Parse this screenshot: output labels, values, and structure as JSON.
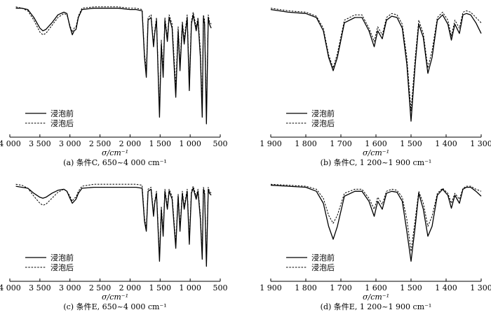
{
  "chart_data": [
    {
      "type": "line",
      "caption": "(a) 条件C, 650~4 000 cm⁻¹",
      "xlabel": "σ/cm⁻¹",
      "xlim": [
        4000,
        500
      ],
      "xticks": [
        4000,
        3500,
        3000,
        2500,
        2000,
        1500,
        1000,
        500
      ],
      "xtick_labels": [
        "4 000",
        "3 500",
        "3 000",
        "2 500",
        "2 000",
        "1 500",
        "1 000",
        "500"
      ],
      "ylim": [
        0,
        1
      ],
      "legend": [
        "浸泡前",
        "浸泡后"
      ],
      "series": [
        {
          "name": "浸泡前",
          "style": "solid",
          "x": [
            3900,
            3800,
            3700,
            3600,
            3500,
            3450,
            3400,
            3300,
            3200,
            3100,
            3050,
            3000,
            2960,
            2930,
            2900,
            2860,
            2800,
            2600,
            2400,
            2200,
            2000,
            1900,
            1800,
            1760,
            1730,
            1700,
            1650,
            1610,
            1590,
            1560,
            1510,
            1480,
            1450,
            1420,
            1380,
            1350,
            1300,
            1240,
            1200,
            1170,
            1130,
            1100,
            1050,
            1015,
            980,
            950,
            900,
            870,
            830,
            800,
            780,
            760,
            730,
            700,
            680,
            650
          ],
          "y": [
            0.97,
            0.97,
            0.96,
            0.9,
            0.82,
            0.8,
            0.81,
            0.86,
            0.92,
            0.94,
            0.93,
            0.83,
            0.77,
            0.8,
            0.81,
            0.9,
            0.96,
            0.97,
            0.97,
            0.97,
            0.96,
            0.96,
            0.95,
            0.6,
            0.45,
            0.88,
            0.9,
            0.68,
            0.78,
            0.88,
            0.15,
            0.7,
            0.45,
            0.88,
            0.72,
            0.9,
            0.82,
            0.3,
            0.8,
            0.5,
            0.85,
            0.7,
            0.9,
            0.35,
            0.85,
            0.92,
            0.8,
            0.88,
            0.6,
            0.15,
            0.9,
            0.85,
            0.1,
            0.9,
            0.85,
            0.82
          ]
        },
        {
          "name": "浸泡后",
          "style": "dashed",
          "x": [
            3900,
            3800,
            3700,
            3600,
            3500,
            3450,
            3400,
            3300,
            3200,
            3100,
            3050,
            3000,
            2960,
            2930,
            2900,
            2860,
            2800,
            2600,
            2400,
            2200,
            2000,
            1900,
            1800,
            1760,
            1730,
            1700,
            1650,
            1610,
            1590,
            1560,
            1510,
            1480,
            1450,
            1420,
            1380,
            1350,
            1300,
            1240,
            1200,
            1170,
            1130,
            1100,
            1050,
            1015,
            980,
            950,
            900,
            870,
            830,
            800,
            780,
            760,
            730,
            700,
            680,
            650
          ],
          "y": [
            0.98,
            0.97,
            0.95,
            0.88,
            0.79,
            0.77,
            0.78,
            0.84,
            0.9,
            0.93,
            0.92,
            0.84,
            0.79,
            0.82,
            0.83,
            0.91,
            0.97,
            0.98,
            0.98,
            0.98,
            0.97,
            0.97,
            0.96,
            0.63,
            0.5,
            0.9,
            0.92,
            0.7,
            0.8,
            0.9,
            0.2,
            0.73,
            0.5,
            0.9,
            0.75,
            0.92,
            0.85,
            0.38,
            0.83,
            0.55,
            0.87,
            0.74,
            0.92,
            0.42,
            0.87,
            0.94,
            0.83,
            0.9,
            0.65,
            0.22,
            0.92,
            0.88,
            0.18,
            0.92,
            0.87,
            0.85
          ]
        }
      ]
    },
    {
      "type": "line",
      "caption": "(b) 条件C, 1 200~1 900 cm⁻¹",
      "xlabel": "σ/cm⁻¹",
      "xlim": [
        1900,
        1300
      ],
      "xticks": [
        1900,
        1800,
        1700,
        1600,
        1500,
        1400,
        1300
      ],
      "xtick_labels": [
        "1 900",
        "1 800",
        "1 700",
        "1 600",
        "1 500",
        "1 400",
        "1 300"
      ],
      "ylim": [
        0,
        1
      ],
      "legend": [
        "浸泡前",
        "浸泡后"
      ],
      "series": [
        {
          "name": "浸泡前",
          "style": "solid",
          "x": [
            1900,
            1850,
            1800,
            1770,
            1750,
            1735,
            1722,
            1710,
            1690,
            1660,
            1640,
            1620,
            1605,
            1595,
            1582,
            1570,
            1555,
            1540,
            1525,
            1512,
            1500,
            1488,
            1478,
            1465,
            1452,
            1440,
            1425,
            1410,
            1395,
            1385,
            1375,
            1362,
            1352,
            1342,
            1330,
            1315,
            1300
          ],
          "y": [
            0.96,
            0.94,
            0.93,
            0.9,
            0.8,
            0.6,
            0.5,
            0.6,
            0.86,
            0.9,
            0.9,
            0.8,
            0.68,
            0.8,
            0.74,
            0.88,
            0.91,
            0.9,
            0.82,
            0.55,
            0.12,
            0.55,
            0.85,
            0.75,
            0.48,
            0.6,
            0.88,
            0.92,
            0.85,
            0.73,
            0.85,
            0.78,
            0.92,
            0.93,
            0.92,
            0.86,
            0.78
          ]
        },
        {
          "name": "浸泡后",
          "style": "dashed",
          "x": [
            1900,
            1850,
            1800,
            1770,
            1750,
            1735,
            1722,
            1710,
            1690,
            1660,
            1640,
            1620,
            1605,
            1595,
            1582,
            1570,
            1555,
            1540,
            1525,
            1512,
            1500,
            1488,
            1478,
            1465,
            1452,
            1440,
            1425,
            1410,
            1395,
            1385,
            1375,
            1362,
            1352,
            1342,
            1330,
            1315,
            1300
          ],
          "y": [
            0.97,
            0.95,
            0.94,
            0.91,
            0.82,
            0.62,
            0.52,
            0.63,
            0.88,
            0.92,
            0.92,
            0.82,
            0.72,
            0.83,
            0.77,
            0.9,
            0.93,
            0.92,
            0.85,
            0.6,
            0.2,
            0.6,
            0.88,
            0.78,
            0.52,
            0.65,
            0.9,
            0.94,
            0.88,
            0.76,
            0.88,
            0.82,
            0.94,
            0.95,
            0.94,
            0.9,
            0.86
          ]
        }
      ]
    },
    {
      "type": "line",
      "caption": "(c) 条件E, 650~4 000 cm⁻¹",
      "xlabel": "σ/cm⁻¹",
      "xlim": [
        4000,
        500
      ],
      "xticks": [
        4000,
        3500,
        3000,
        2500,
        2000,
        1500,
        1000,
        500
      ],
      "xtick_labels": [
        "4 000",
        "3 500",
        "3 000",
        "2 500",
        "2 000",
        "1 500",
        "1 000",
        "500"
      ],
      "ylim": [
        0,
        1
      ],
      "legend": [
        "浸泡前",
        "浸泡后"
      ],
      "series": [
        {
          "name": "浸泡前",
          "style": "solid",
          "x": [
            3900,
            3800,
            3700,
            3600,
            3500,
            3450,
            3400,
            3300,
            3200,
            3100,
            3050,
            3000,
            2960,
            2930,
            2900,
            2860,
            2800,
            2600,
            2400,
            2200,
            2000,
            1900,
            1800,
            1760,
            1730,
            1700,
            1650,
            1610,
            1590,
            1560,
            1510,
            1480,
            1450,
            1420,
            1380,
            1350,
            1300,
            1240,
            1200,
            1170,
            1130,
            1100,
            1050,
            1015,
            980,
            950,
            900,
            870,
            830,
            800,
            780,
            760,
            730,
            700,
            680,
            650
          ],
          "y": [
            0.95,
            0.94,
            0.93,
            0.88,
            0.84,
            0.83,
            0.84,
            0.88,
            0.91,
            0.92,
            0.9,
            0.83,
            0.78,
            0.8,
            0.82,
            0.88,
            0.93,
            0.94,
            0.94,
            0.94,
            0.94,
            0.94,
            0.93,
            0.6,
            0.5,
            0.9,
            0.92,
            0.65,
            0.78,
            0.88,
            0.2,
            0.72,
            0.45,
            0.9,
            0.72,
            0.9,
            0.82,
            0.33,
            0.85,
            0.5,
            0.88,
            0.72,
            0.9,
            0.37,
            0.88,
            0.93,
            0.82,
            0.9,
            0.62,
            0.22,
            0.92,
            0.87,
            0.15,
            0.92,
            0.88,
            0.86
          ]
        },
        {
          "name": "浸泡后",
          "style": "dashed",
          "x": [
            3900,
            3800,
            3700,
            3600,
            3500,
            3450,
            3400,
            3300,
            3200,
            3100,
            3050,
            3000,
            2960,
            2930,
            2900,
            2860,
            2800,
            2600,
            2400,
            2200,
            2000,
            1900,
            1800,
            1760,
            1730,
            1700,
            1650,
            1610,
            1590,
            1560,
            1510,
            1480,
            1450,
            1420,
            1380,
            1350,
            1300,
            1240,
            1200,
            1170,
            1130,
            1100,
            1050,
            1015,
            980,
            950,
            900,
            870,
            830,
            800,
            780,
            760,
            730,
            700,
            680,
            650
          ],
          "y": [
            0.97,
            0.96,
            0.93,
            0.85,
            0.78,
            0.76,
            0.77,
            0.83,
            0.89,
            0.92,
            0.9,
            0.85,
            0.8,
            0.83,
            0.84,
            0.9,
            0.95,
            0.97,
            0.97,
            0.97,
            0.97,
            0.97,
            0.96,
            0.63,
            0.53,
            0.92,
            0.94,
            0.68,
            0.8,
            0.9,
            0.25,
            0.75,
            0.5,
            0.92,
            0.75,
            0.92,
            0.85,
            0.38,
            0.87,
            0.55,
            0.9,
            0.75,
            0.92,
            0.42,
            0.9,
            0.95,
            0.85,
            0.92,
            0.66,
            0.26,
            0.94,
            0.9,
            0.2,
            0.94,
            0.9,
            0.88
          ]
        }
      ]
    },
    {
      "type": "line",
      "caption": "(d) 条件E, 1 200~1 900 cm⁻¹",
      "xlabel": "σ/cm⁻¹",
      "xlim": [
        1900,
        1300
      ],
      "xticks": [
        1900,
        1800,
        1700,
        1600,
        1500,
        1400,
        1300
      ],
      "xtick_labels": [
        "1 900",
        "1 800",
        "1 700",
        "1 600",
        "1 500",
        "1 400",
        "1 300"
      ],
      "ylim": [
        0,
        1
      ],
      "legend": [
        "浸泡前",
        "浸泡后"
      ],
      "series": [
        {
          "name": "浸泡前",
          "style": "solid",
          "x": [
            1900,
            1850,
            1800,
            1770,
            1750,
            1735,
            1722,
            1710,
            1690,
            1660,
            1640,
            1620,
            1605,
            1595,
            1582,
            1570,
            1555,
            1540,
            1525,
            1512,
            1500,
            1488,
            1478,
            1465,
            1452,
            1440,
            1425,
            1410,
            1395,
            1385,
            1375,
            1362,
            1352,
            1342,
            1330,
            1315,
            1300
          ],
          "y": [
            0.96,
            0.95,
            0.94,
            0.9,
            0.78,
            0.55,
            0.42,
            0.55,
            0.85,
            0.9,
            0.9,
            0.8,
            0.65,
            0.8,
            0.72,
            0.88,
            0.9,
            0.89,
            0.8,
            0.5,
            0.2,
            0.55,
            0.88,
            0.72,
            0.45,
            0.55,
            0.86,
            0.92,
            0.86,
            0.73,
            0.86,
            0.78,
            0.92,
            0.94,
            0.94,
            0.9,
            0.85
          ]
        },
        {
          "name": "浸泡后",
          "style": "dashed",
          "x": [
            1900,
            1850,
            1800,
            1770,
            1750,
            1735,
            1722,
            1710,
            1690,
            1660,
            1640,
            1620,
            1605,
            1595,
            1582,
            1570,
            1555,
            1540,
            1525,
            1512,
            1500,
            1488,
            1478,
            1465,
            1452,
            1440,
            1425,
            1410,
            1395,
            1385,
            1375,
            1362,
            1352,
            1342,
            1330,
            1315,
            1300
          ],
          "y": [
            0.97,
            0.96,
            0.95,
            0.92,
            0.83,
            0.66,
            0.58,
            0.66,
            0.88,
            0.92,
            0.92,
            0.83,
            0.72,
            0.84,
            0.77,
            0.9,
            0.92,
            0.91,
            0.84,
            0.62,
            0.3,
            0.62,
            0.9,
            0.78,
            0.55,
            0.65,
            0.88,
            0.93,
            0.88,
            0.78,
            0.88,
            0.82,
            0.93,
            0.95,
            0.95,
            0.92,
            0.9
          ]
        }
      ]
    }
  ]
}
